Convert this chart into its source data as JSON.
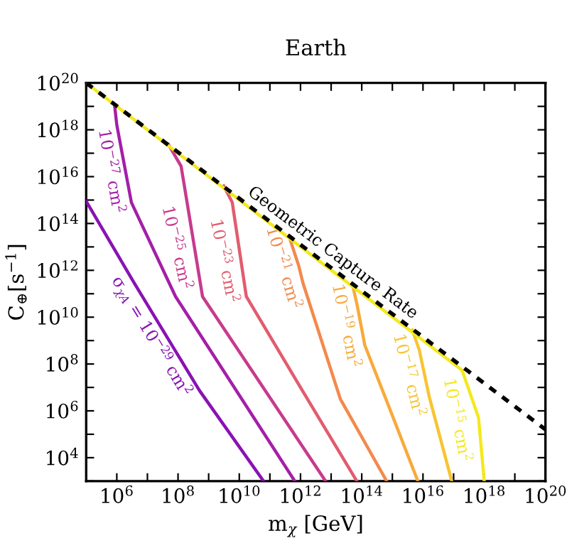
{
  "chart_data": {
    "type": "line",
    "title": "Earth",
    "xlabel": "m$_{χ}$ [GeV]",
    "ylabel": "C$_{⊕}$[s$^{−1}$]",
    "log": "xy",
    "xlim": [
      100000.0,
      1e+20
    ],
    "ylim": [
      1000.0,
      1e+20
    ],
    "xticks": [
      {
        "value": 100000.0,
        "label": null
      },
      {
        "value": 1000000.0,
        "label": "10$^{6}$"
      },
      {
        "value": 10000000.0,
        "label": null
      },
      {
        "value": 100000000.0,
        "label": "10$^{8}$"
      },
      {
        "value": 1000000000.0,
        "label": null
      },
      {
        "value": 10000000000.0,
        "label": "10$^{10}$"
      },
      {
        "value": 100000000000.0,
        "label": null
      },
      {
        "value": 1000000000000.0,
        "label": "10$^{12}$"
      },
      {
        "value": 10000000000000.0,
        "label": null
      },
      {
        "value": 100000000000000.0,
        "label": "10$^{14}$"
      },
      {
        "value": 1000000000000000.0,
        "label": null
      },
      {
        "value": 1e+16,
        "label": "10$^{16}$"
      },
      {
        "value": 1e+17,
        "label": null
      },
      {
        "value": 1e+18,
        "label": "10$^{18}$"
      },
      {
        "value": 1e+19,
        "label": null
      },
      {
        "value": 1e+20,
        "label": "10$^{20}$"
      }
    ],
    "yticks": [
      {
        "value": 1000.0,
        "label": null
      },
      {
        "value": 10000.0,
        "label": "10$^{4}$"
      },
      {
        "value": 100000.0,
        "label": null
      },
      {
        "value": 1000000.0,
        "label": "10$^{6}$"
      },
      {
        "value": 10000000.0,
        "label": null
      },
      {
        "value": 100000000.0,
        "label": "10$^{8}$"
      },
      {
        "value": 1000000000.0,
        "label": null
      },
      {
        "value": 10000000000.0,
        "label": "10$^{10}$"
      },
      {
        "value": 100000000000.0,
        "label": null
      },
      {
        "value": 1000000000000.0,
        "label": "10$^{12}$"
      },
      {
        "value": 10000000000000.0,
        "label": null
      },
      {
        "value": 100000000000000.0,
        "label": "10$^{14}$"
      },
      {
        "value": 1000000000000000.0,
        "label": null
      },
      {
        "value": 1e+16,
        "label": "10$^{16}$"
      },
      {
        "value": 1e+17,
        "label": null
      },
      {
        "value": 1e+18,
        "label": "10$^{18}$"
      },
      {
        "value": 1e+19,
        "label": null
      },
      {
        "value": 1e+20,
        "label": "10$^{20}$"
      }
    ],
    "grid": false,
    "legend": false,
    "line_style": "solid",
    "marker": "none",
    "series": [
      {
        "name": "σ$_{χA}$ = 10$^{−29}$ cm$^{2}$",
        "color": "#8a12b4",
        "x": [
          100000.0,
          3700000.0,
          500000000.0,
          62000000000.0
        ],
        "values": [
          890000000000000.0,
          290000000000.0,
          7400000.0,
          1000.0
        ]
      },
      {
        "name": "10$^{−27}$ cm$^{2}$",
        "color": "#a41fa8",
        "x": [
          850000.0,
          1000000.0,
          3000000.0,
          83000000.0,
          650000000000.0
        ],
        "values": [
          1.07e+19,
          1.6e+18,
          790000000000000.0,
          76000000000.0,
          1000.0
        ]
      },
      {
        "name": "10$^{−25}$ cm$^{2}$",
        "color": "#c83a8e",
        "x": [
          49000000.0,
          126000000.0,
          630000000.0,
          6600000000000.0
        ],
        "values": [
          2.3e+17,
          2.8e+16,
          76000000000.0,
          1000.0
        ]
      },
      {
        "name": "10$^{−23}$ cm$^{2}$",
        "color": "#e25c6e",
        "x": [
          3100000000.0,
          5900000000.0,
          17000000000.0,
          1000000000000.0,
          69000000000000.0
        ],
        "values": [
          4000000000000000.0,
          790000000000000.0,
          76000000000.0,
          10000000.0,
          1000.0
        ]
      },
      {
        "name": "10$^{−21}$ cm$^{2}$",
        "color": "#f28a4c",
        "x": [
          420000000000.0,
          870000000000.0,
          1200000000000.0,
          20000000000000.0,
          650000000000000.0
        ],
        "values": [
          29000000000000.0,
          1600000000000.0,
          290000000000.0,
          3200000.0,
          1000.0
        ]
      },
      {
        "name": "10$^{−19}$ cm$^{2}$",
        "color": "#f8aa3c",
        "x": [
          50000000000000.0,
          71000000000000.0,
          126000000000000.0,
          1000000000000000.0,
          6800000000000000.0
        ],
        "values": [
          240000000000.0,
          32000000000.0,
          630000000.0,
          630000.0,
          1000.0
        ]
      },
      {
        "name": "10$^{−17}$ cm$^{2}$",
        "color": "#f8c432",
        "x": [
          4500000000000000.0,
          7600000000000000.0,
          1.6e+16,
          8.7e+16
        ],
        "values": [
          2800000000.0,
          390000000.0,
          4000000.0,
          1000.0
        ]
      },
      {
        "name": "10$^{−15}$ cm$^{2}$",
        "color": "#f4e81e",
        "x": [
          100000.0,
          1.9e+17,
          6.5e+17,
          1e+18
        ],
        "values": [
          1e+20,
          54000000.0,
          520000.0,
          1000.0
        ]
      },
      {
        "name": "Geometric Capture Rate",
        "color": "#000000",
        "line_style": "dashed",
        "x": [
          100000.0,
          1e+20
        ],
        "values": [
          1e+20,
          160000.0
        ]
      }
    ]
  }
}
